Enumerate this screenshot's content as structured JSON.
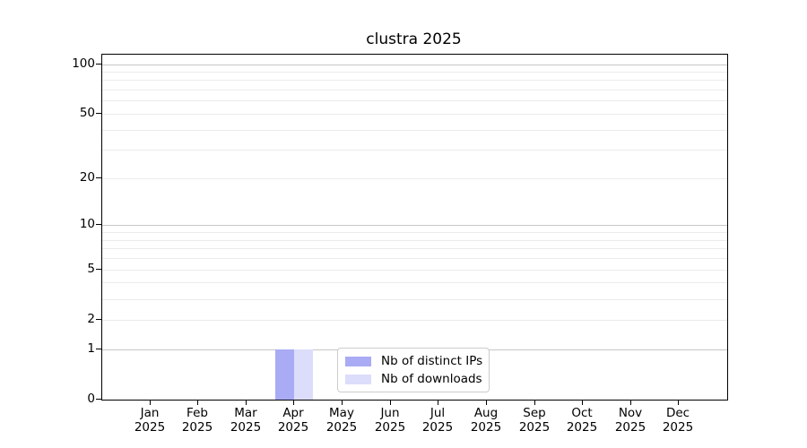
{
  "figure": {
    "title": "clustra 2025"
  },
  "chart_data": {
    "type": "bar",
    "title": "clustra 2025",
    "x_tick_labels": [
      {
        "month": "Jan",
        "year": "2025"
      },
      {
        "month": "Feb",
        "year": "2025"
      },
      {
        "month": "Mar",
        "year": "2025"
      },
      {
        "month": "Apr",
        "year": "2025"
      },
      {
        "month": "May",
        "year": "2025"
      },
      {
        "month": "Jun",
        "year": "2025"
      },
      {
        "month": "Jul",
        "year": "2025"
      },
      {
        "month": "Aug",
        "year": "2025"
      },
      {
        "month": "Sep",
        "year": "2025"
      },
      {
        "month": "Oct",
        "year": "2025"
      },
      {
        "month": "Nov",
        "year": "2025"
      },
      {
        "month": "Dec",
        "year": "2025"
      }
    ],
    "series": [
      {
        "name": "Nb of distinct IPs",
        "color": "#a9abf5",
        "values": [
          0,
          0,
          0,
          1,
          0,
          0,
          0,
          0,
          0,
          0,
          0,
          0
        ]
      },
      {
        "name": "Nb of downloads",
        "color": "#dcddfb",
        "values": [
          0,
          0,
          0,
          1,
          0,
          0,
          0,
          0,
          0,
          0,
          0,
          0
        ]
      }
    ],
    "y_axis": {
      "scale": "log1p",
      "tick_labels": [
        0,
        1,
        2,
        5,
        10,
        20,
        50,
        100
      ],
      "major_gridlines": [
        1,
        10,
        100
      ],
      "minor_gridlines": [
        2,
        3,
        4,
        5,
        6,
        7,
        8,
        9,
        20,
        30,
        40,
        50,
        60,
        70,
        80,
        90
      ],
      "ylim": [
        0,
        114
      ]
    },
    "grid": true,
    "legend_position": "lower center",
    "xlabel": "",
    "ylabel": ""
  },
  "legend": {
    "items": [
      {
        "label": "Nb of distinct IPs",
        "color": "#a9abf5"
      },
      {
        "label": "Nb of downloads",
        "color": "#dcddfb"
      }
    ]
  },
  "colors": {
    "major_grid": "#c6c6c6",
    "minor_grid": "#ebebeb",
    "spine": "#000000",
    "background": "#ffffff"
  }
}
